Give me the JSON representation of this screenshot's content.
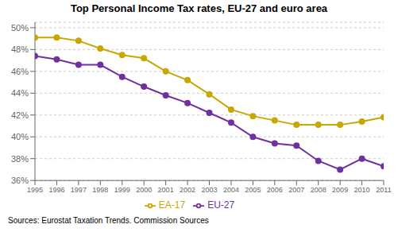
{
  "chart_data": {
    "type": "line",
    "title": "Top Personal Income Tax rates, EU-27 and euro area",
    "x": [
      1995,
      1996,
      1997,
      1998,
      1999,
      2000,
      2001,
      2002,
      2003,
      2004,
      2005,
      2006,
      2007,
      2008,
      2009,
      2010,
      2011
    ],
    "xlim": [
      1995,
      2011
    ],
    "xticks": [
      1995,
      1996,
      1997,
      1998,
      1999,
      2000,
      2001,
      2002,
      2003,
      2004,
      2005,
      2006,
      2007,
      2008,
      2009,
      2010,
      2011
    ],
    "series": [
      {
        "name": "EU-27",
        "color": "#7030A0",
        "values": [
          47.4,
          47.1,
          46.6,
          46.6,
          45.5,
          44.6,
          43.8,
          43.1,
          42.2,
          41.3,
          40.0,
          39.4,
          39.2,
          37.8,
          37.0,
          38.0,
          37.3
        ]
      },
      {
        "name": "EA-17",
        "color": "#C8A800",
        "values": [
          49.1,
          49.1,
          48.8,
          48.1,
          47.5,
          47.2,
          46.0,
          45.2,
          43.9,
          42.5,
          41.9,
          41.5,
          41.1,
          41.1,
          41.1,
          41.4,
          41.8
        ]
      }
    ],
    "ylim": [
      36,
      50.5
    ],
    "yticks": [
      {
        "value": 36,
        "label": "36%"
      },
      {
        "value": 38,
        "label": "38%"
      },
      {
        "value": 40,
        "label": "40%"
      },
      {
        "value": 42,
        "label": "42%"
      },
      {
        "value": 44,
        "label": "44%"
      },
      {
        "value": 46,
        "label": "46%"
      },
      {
        "value": 48,
        "label": "48%"
      },
      {
        "value": 50,
        "label": "50%"
      }
    ],
    "grid": true,
    "legend": "bottom",
    "marker": "circle",
    "annotations": [
      "Sources: Eurostat Taxation Trends. Commission Sources"
    ]
  }
}
